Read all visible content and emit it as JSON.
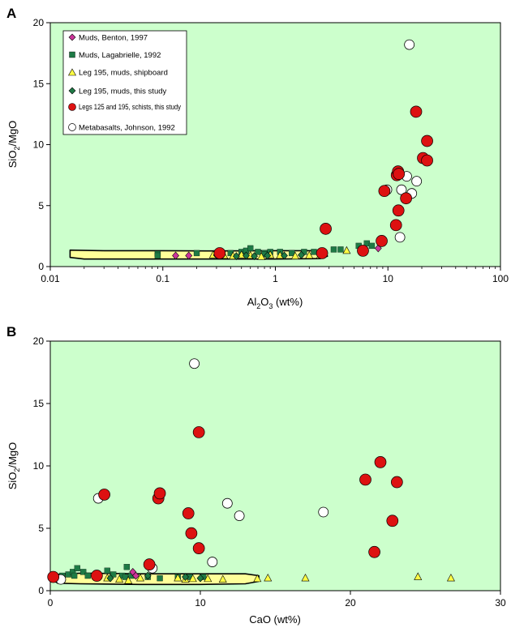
{
  "colors": {
    "plot_bg": "#ccffcc",
    "field_fill": "#ffff99",
    "muds_benton": "#cc3399",
    "muds_lagabrielle": "#1e7a45",
    "leg195_shipboard": "#ffff44",
    "leg195_thisstudy": "#1e7a45",
    "schists": "#dd1111",
    "metabasalts": "#ffffff"
  },
  "chart_data": [
    {
      "panel_label": "A",
      "type": "scatter",
      "xscale": "log",
      "xlim": [
        0.01,
        100
      ],
      "ylim": [
        0,
        20
      ],
      "xticks": [
        "0.01",
        "0.1",
        "1",
        "10",
        "100"
      ],
      "yticks": [
        "0",
        "5",
        "10",
        "15",
        "20"
      ],
      "xlabel": "Al2O3 (wt%)",
      "ylabel": "SiO2/MgO",
      "legend_position": "top-left",
      "legend": [
        {
          "key": "muds_benton",
          "label": "Muds, Benton, 1997"
        },
        {
          "key": "muds_lagabrielle",
          "label": "Muds, Lagabrielle, 1992"
        },
        {
          "key": "leg195_shipboard",
          "label": "Leg 195, muds, shipboard"
        },
        {
          "key": "leg195_thisstudy",
          "label": "Leg 195, muds, this study"
        },
        {
          "key": "schists",
          "label": "Legs 125 and 195, schists, this study"
        },
        {
          "key": "metabasalts",
          "label": "Metabasalts, Johnson, 1992"
        }
      ],
      "series": [
        {
          "key": "muds_benton",
          "marker": "diamond",
          "points": [
            [
              0.13,
              0.9
            ],
            [
              0.17,
              0.9
            ],
            [
              0.3,
              0.95
            ],
            [
              8.2,
              1.5
            ]
          ]
        },
        {
          "key": "muds_lagabrielle",
          "marker": "square",
          "points": [
            [
              0.09,
              1.05
            ],
            [
              0.2,
              1.1
            ],
            [
              0.3,
              1.1
            ],
            [
              0.4,
              1.1
            ],
            [
              0.5,
              1.2
            ],
            [
              0.55,
              1.3
            ],
            [
              0.6,
              1.5
            ],
            [
              0.7,
              1.2
            ],
            [
              0.8,
              1.1
            ],
            [
              0.9,
              1.2
            ],
            [
              1.1,
              1.2
            ],
            [
              1.4,
              1.1
            ],
            [
              1.8,
              1.2
            ],
            [
              2.2,
              1.2
            ],
            [
              3.3,
              1.4
            ],
            [
              3.8,
              1.4
            ],
            [
              5.5,
              1.7
            ],
            [
              6.5,
              1.9
            ],
            [
              7.2,
              1.7
            ],
            [
              0.09,
              0.9
            ],
            [
              0.8,
              1.0
            ]
          ]
        },
        {
          "key": "leg195_shipboard",
          "marker": "triangle",
          "points": [
            [
              0.28,
              0.95
            ],
            [
              0.35,
              0.9
            ],
            [
              0.42,
              0.85
            ],
            [
              0.5,
              0.95
            ],
            [
              0.6,
              0.9
            ],
            [
              0.75,
              0.8
            ],
            [
              0.9,
              0.95
            ],
            [
              1.1,
              0.9
            ],
            [
              1.5,
              0.85
            ],
            [
              2.0,
              0.9
            ],
            [
              2.5,
              0.9
            ],
            [
              4.3,
              1.3
            ]
          ]
        },
        {
          "key": "leg195_thisstudy",
          "marker": "diamond",
          "points": [
            [
              0.45,
              0.85
            ],
            [
              0.55,
              0.9
            ],
            [
              0.65,
              0.85
            ],
            [
              0.85,
              0.9
            ],
            [
              1.2,
              0.9
            ],
            [
              1.7,
              0.95
            ]
          ]
        },
        {
          "key": "schists",
          "marker": "circle",
          "points": [
            [
              0.32,
              1.1
            ],
            [
              2.6,
              1.1
            ],
            [
              2.8,
              3.1
            ],
            [
              6.0,
              1.3
            ],
            [
              8.8,
              2.1
            ],
            [
              9.3,
              6.2
            ],
            [
              11.8,
              3.4
            ],
            [
              12.0,
              7.5
            ],
            [
              12.3,
              7.8
            ],
            [
              12.4,
              4.6
            ],
            [
              14.5,
              5.6
            ],
            [
              17.8,
              12.7
            ],
            [
              20.5,
              8.9
            ],
            [
              22.3,
              8.7
            ],
            [
              22.3,
              10.3
            ],
            [
              12.5,
              7.6
            ]
          ]
        },
        {
          "key": "metabasalts",
          "marker": "open-circle",
          "points": [
            [
              15.5,
              18.2
            ],
            [
              9.8,
              6.3
            ],
            [
              13.2,
              6.3
            ],
            [
              14.7,
              7.4
            ],
            [
              16.3,
              6.0
            ],
            [
              18.0,
              7.0
            ],
            [
              12.8,
              2.4
            ]
          ]
        }
      ],
      "field_curve": [
        [
          0.015,
          1.35
        ],
        [
          0.03,
          1.3
        ],
        [
          0.1,
          1.3
        ],
        [
          0.3,
          1.28
        ],
        [
          1,
          1.3
        ],
        [
          2,
          1.3
        ],
        [
          2.8,
          1.25
        ],
        [
          2.9,
          0.85
        ],
        [
          2.5,
          0.65
        ],
        [
          1,
          0.62
        ],
        [
          0.1,
          0.62
        ],
        [
          0.02,
          0.62
        ],
        [
          0.015,
          0.75
        ]
      ]
    },
    {
      "panel_label": "B",
      "type": "scatter",
      "xscale": "linear",
      "xlim": [
        0,
        30
      ],
      "ylim": [
        0,
        20
      ],
      "xticks": [
        "0",
        "10",
        "20",
        "30"
      ],
      "yticks": [
        "0",
        "5",
        "10",
        "15",
        "20"
      ],
      "xlabel": "CaO (wt%)",
      "ylabel": "SiO2/MgO",
      "series": [
        {
          "key": "muds_benton",
          "marker": "diamond",
          "points": [
            [
              5.5,
              1.5
            ],
            [
              5.7,
              1.2
            ]
          ]
        },
        {
          "key": "muds_lagabrielle",
          "marker": "square",
          "points": [
            [
              0.8,
              1.2
            ],
            [
              1.2,
              1.3
            ],
            [
              1.5,
              1.5
            ],
            [
              1.8,
              1.8
            ],
            [
              2.2,
              1.5
            ],
            [
              2.5,
              1.2
            ],
            [
              3.0,
              1.2
            ],
            [
              3.8,
              1.6
            ],
            [
              4.2,
              1.3
            ],
            [
              4.8,
              1.2
            ],
            [
              5.0,
              1.1
            ],
            [
              5.1,
              1.9
            ],
            [
              5.4,
              1.2
            ],
            [
              6.5,
              1.1
            ],
            [
              7.3,
              1.0
            ],
            [
              8.5,
              1.1
            ],
            [
              9.3,
              1.1
            ],
            [
              10.2,
              1.1
            ],
            [
              0.5,
              1.0
            ],
            [
              1.6,
              1.2
            ]
          ]
        },
        {
          "key": "leg195_shipboard",
          "marker": "triangle",
          "points": [
            [
              3.8,
              1.0
            ],
            [
              4.6,
              0.9
            ],
            [
              5.2,
              0.8
            ],
            [
              6.0,
              1.0
            ],
            [
              8.5,
              1.0
            ],
            [
              9.0,
              0.9
            ],
            [
              9.5,
              0.95
            ],
            [
              10.5,
              0.95
            ],
            [
              11.5,
              0.9
            ],
            [
              13.8,
              0.95
            ],
            [
              14.5,
              1.0
            ],
            [
              17.0,
              1.0
            ],
            [
              24.5,
              1.1
            ],
            [
              26.7,
              1.0
            ]
          ]
        },
        {
          "key": "leg195_thisstudy",
          "marker": "diamond",
          "points": [
            [
              0.2,
              1.1
            ],
            [
              4.0,
              1.0
            ],
            [
              6.5,
              1.2
            ],
            [
              9.0,
              1.1
            ],
            [
              10.0,
              1.0
            ]
          ]
        },
        {
          "key": "schists",
          "marker": "circle",
          "points": [
            [
              0.2,
              1.1
            ],
            [
              3.1,
              1.2
            ],
            [
              3.6,
              7.7
            ],
            [
              6.6,
              2.1
            ],
            [
              7.2,
              7.4
            ],
            [
              7.3,
              7.8
            ],
            [
              9.2,
              6.2
            ],
            [
              9.4,
              4.6
            ],
            [
              9.9,
              12.7
            ],
            [
              9.9,
              3.4
            ],
            [
              21.0,
              8.9
            ],
            [
              22.0,
              10.3
            ],
            [
              22.8,
              5.6
            ],
            [
              23.1,
              8.7
            ],
            [
              21.6,
              3.1
            ]
          ]
        },
        {
          "key": "metabasalts",
          "marker": "open-circle",
          "points": [
            [
              3.2,
              7.4
            ],
            [
              6.8,
              1.8
            ],
            [
              9.6,
              18.2
            ],
            [
              10.8,
              2.3
            ],
            [
              11.8,
              7.0
            ],
            [
              12.6,
              6.0
            ],
            [
              18.2,
              6.3
            ],
            [
              0.7,
              0.9
            ]
          ]
        }
      ],
      "field_curve": [
        [
          0.3,
          1.3
        ],
        [
          2,
          1.4
        ],
        [
          6,
          1.35
        ],
        [
          10,
          1.35
        ],
        [
          13,
          1.35
        ],
        [
          13.9,
          1.2
        ],
        [
          13.9,
          0.75
        ],
        [
          13,
          0.55
        ],
        [
          10,
          0.5
        ],
        [
          6,
          0.5
        ],
        [
          2,
          0.55
        ],
        [
          0.5,
          0.6
        ],
        [
          0.1,
          0.9
        ]
      ]
    }
  ]
}
